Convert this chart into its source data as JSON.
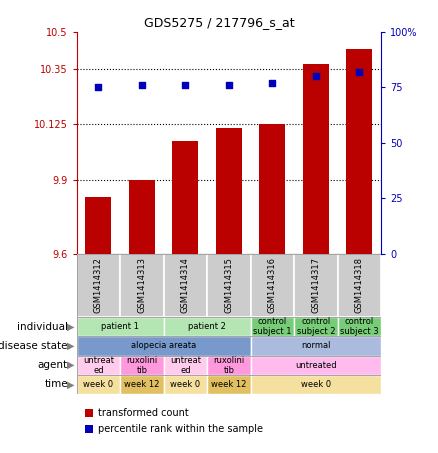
{
  "title": "GDS5275 / 217796_s_at",
  "samples": [
    "GSM1414312",
    "GSM1414313",
    "GSM1414314",
    "GSM1414315",
    "GSM1414316",
    "GSM1414317",
    "GSM1414318"
  ],
  "bar_values": [
    9.83,
    9.9,
    10.055,
    10.11,
    10.125,
    10.37,
    10.43
  ],
  "dot_values": [
    75,
    76,
    76,
    76,
    77,
    80,
    82
  ],
  "ylim_left": [
    9.6,
    10.5
  ],
  "ylim_right": [
    0,
    100
  ],
  "yticks_left": [
    9.6,
    9.9,
    10.125,
    10.35,
    10.5
  ],
  "ytick_labels_left": [
    "9.6",
    "9.9",
    "10.125",
    "10.35",
    "10.5"
  ],
  "yticks_right": [
    0,
    25,
    50,
    75,
    100
  ],
  "ytick_labels_right": [
    "0",
    "25",
    "50",
    "75",
    "100%"
  ],
  "hlines": [
    9.9,
    10.125,
    10.35
  ],
  "bar_color": "#bb0000",
  "dot_color": "#0000bb",
  "sample_box_color": "#cccccc",
  "individual_cells": [
    {
      "text": "patient 1",
      "start": 0,
      "end": 2,
      "color": "#b3e6b3"
    },
    {
      "text": "patient 2",
      "start": 2,
      "end": 4,
      "color": "#b3e6b3"
    },
    {
      "text": "control\nsubject 1",
      "start": 4,
      "end": 5,
      "color": "#77cc77"
    },
    {
      "text": "control\nsubject 2",
      "start": 5,
      "end": 6,
      "color": "#77cc77"
    },
    {
      "text": "control\nsubject 3",
      "start": 6,
      "end": 7,
      "color": "#77cc77"
    }
  ],
  "disease_cells": [
    {
      "text": "alopecia areata",
      "start": 0,
      "end": 4,
      "color": "#7799cc"
    },
    {
      "text": "normal",
      "start": 4,
      "end": 7,
      "color": "#aabbdd"
    }
  ],
  "agent_cells": [
    {
      "text": "untreat\ned",
      "start": 0,
      "end": 1,
      "color": "#ffccee"
    },
    {
      "text": "ruxolini\ntib",
      "start": 1,
      "end": 2,
      "color": "#ff99dd"
    },
    {
      "text": "untreat\ned",
      "start": 2,
      "end": 3,
      "color": "#ffccee"
    },
    {
      "text": "ruxolini\ntib",
      "start": 3,
      "end": 4,
      "color": "#ff99dd"
    },
    {
      "text": "untreated",
      "start": 4,
      "end": 7,
      "color": "#ffbbee"
    }
  ],
  "time_cells": [
    {
      "text": "week 0",
      "start": 0,
      "end": 1,
      "color": "#f5e0a0"
    },
    {
      "text": "week 12",
      "start": 1,
      "end": 2,
      "color": "#e0c060"
    },
    {
      "text": "week 0",
      "start": 2,
      "end": 3,
      "color": "#f5e0a0"
    },
    {
      "text": "week 12",
      "start": 3,
      "end": 4,
      "color": "#e0c060"
    },
    {
      "text": "week 0",
      "start": 4,
      "end": 7,
      "color": "#f5e0a0"
    }
  ],
  "row_labels": [
    "individual",
    "disease state",
    "agent",
    "time"
  ],
  "legend_red": "transformed count",
  "legend_blue": "percentile rank within the sample"
}
